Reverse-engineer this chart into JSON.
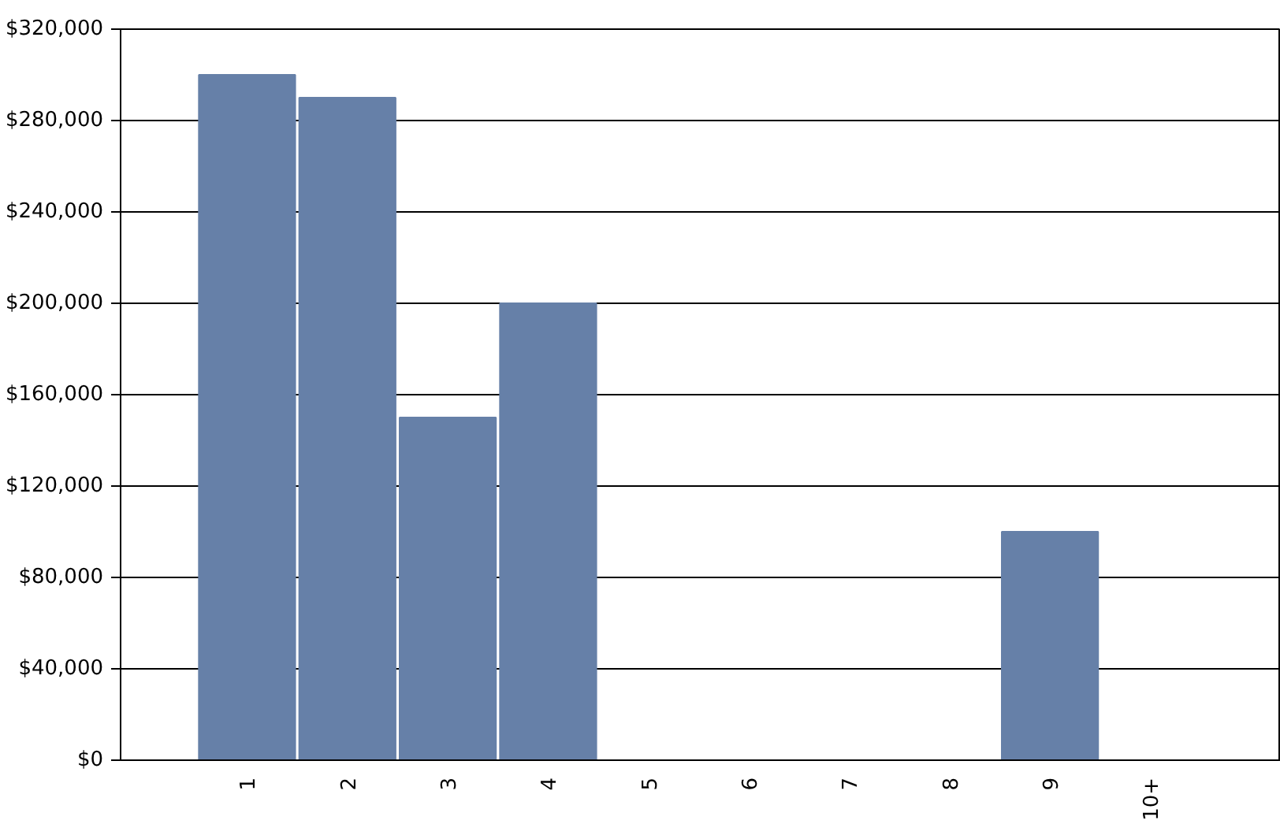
{
  "chart_data": {
    "type": "bar",
    "categories": [
      "1",
      "2",
      "3",
      "4",
      "5",
      "6",
      "7",
      "8",
      "9",
      "10+"
    ],
    "values": [
      300000,
      290000,
      150000,
      200000,
      0,
      0,
      0,
      0,
      100000,
      0
    ],
    "color": "#6680a8",
    "ylim": [
      0,
      320000
    ],
    "yticks": [
      {
        "value": 0,
        "label": "$0"
      },
      {
        "value": 40000,
        "label": "$40,000"
      },
      {
        "value": 80000,
        "label": "$80,000"
      },
      {
        "value": 120000,
        "label": "$120,000"
      },
      {
        "value": 160000,
        "label": "$160,000"
      },
      {
        "value": 200000,
        "label": "$200,000"
      },
      {
        "value": 240000,
        "label": "$240,000"
      },
      {
        "value": 280000,
        "label": "$280,000"
      },
      {
        "value": 320000,
        "label": "$320,000"
      }
    ],
    "grid": "y"
  }
}
